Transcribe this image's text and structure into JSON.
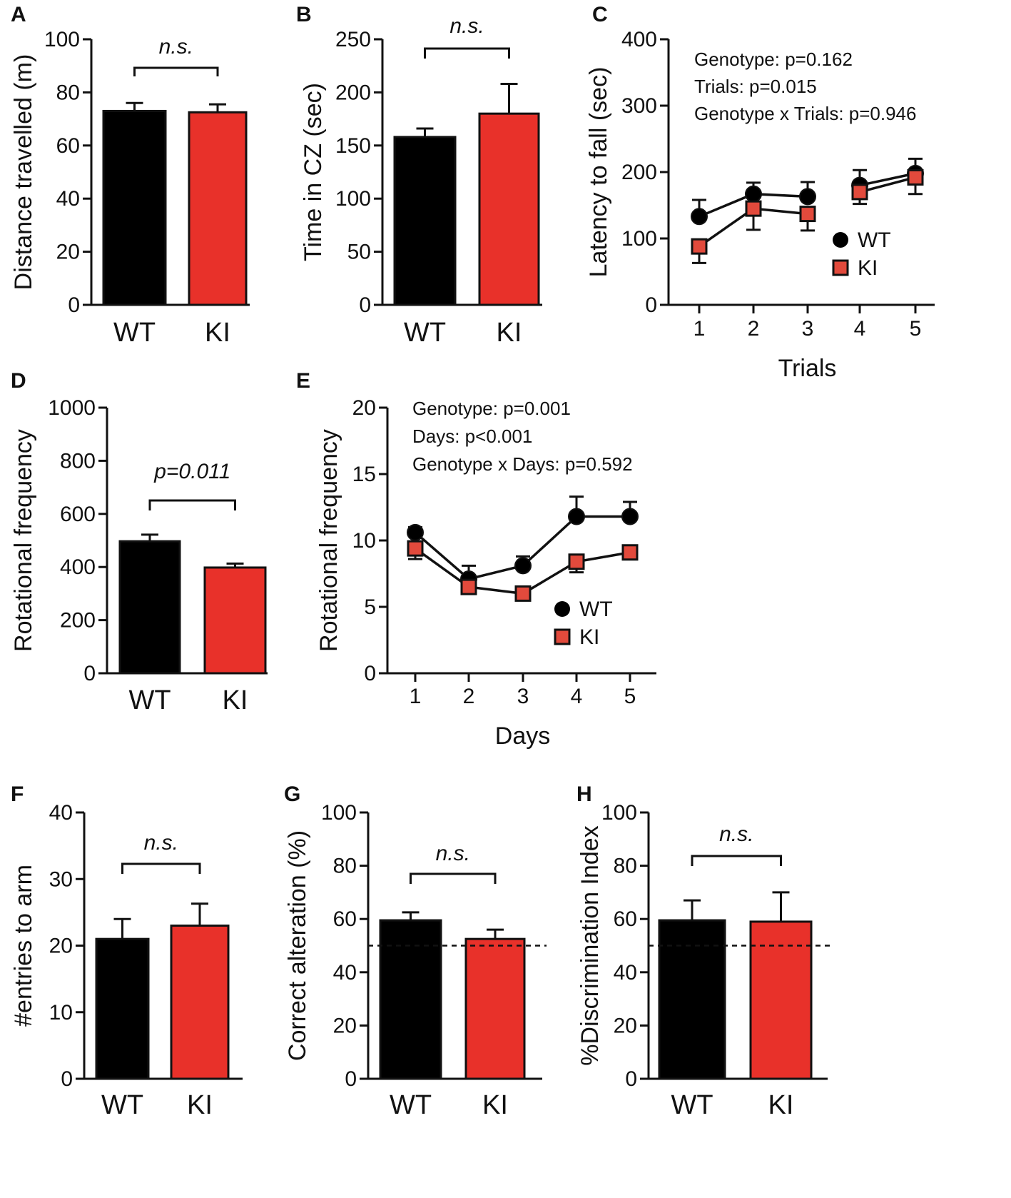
{
  "colors": {
    "wt": "#000000",
    "ki_bar": "#e8312a",
    "ki_marker": "#e24a3c",
    "outline": "#111111"
  },
  "chart_data": [
    {
      "panel": "A",
      "type": "bar",
      "categories": [
        "WT",
        "KI"
      ],
      "values": [
        73,
        72.5
      ],
      "errors": [
        3,
        3
      ],
      "ylabel": "Distance travelled (m)",
      "ylim": [
        0,
        100
      ],
      "yticks": [
        0,
        20,
        40,
        60,
        80,
        100
      ],
      "significance": "n.s."
    },
    {
      "panel": "B",
      "type": "bar",
      "categories": [
        "WT",
        "KI"
      ],
      "values": [
        158,
        180
      ],
      "errors": [
        8,
        28
      ],
      "ylabel": "Time in CZ (sec)",
      "ylim": [
        0,
        250
      ],
      "yticks": [
        0,
        50,
        100,
        150,
        200,
        250
      ],
      "significance": "n.s."
    },
    {
      "panel": "C",
      "type": "line",
      "x": [
        1,
        2,
        3,
        4,
        5
      ],
      "xlabel": "Trials",
      "ylabel": "Latency to fall (sec)",
      "ylim": [
        0,
        400
      ],
      "yticks": [
        0,
        100,
        200,
        300,
        400
      ],
      "segments": [
        [
          0,
          2
        ],
        [
          3,
          4
        ]
      ],
      "series": [
        {
          "name": "WT",
          "values": [
            133,
            167,
            163,
            180,
            198
          ],
          "errors": [
            25,
            17,
            22,
            23,
            22
          ]
        },
        {
          "name": "KI",
          "values": [
            88,
            145,
            137,
            170,
            192
          ],
          "errors": [
            25,
            32,
            25,
            18,
            25
          ]
        }
      ],
      "annotations": [
        "Genotype: p=0.162",
        "Trials: p=0.015",
        "Genotype x Trials: p=0.946"
      ],
      "legend": [
        "WT",
        "KI"
      ]
    },
    {
      "panel": "D",
      "type": "bar",
      "categories": [
        "WT",
        "KI"
      ],
      "values": [
        497,
        398
      ],
      "errors": [
        25,
        15
      ],
      "ylabel": "Rotational frequency",
      "ylim": [
        0,
        1000
      ],
      "yticks": [
        0,
        200,
        400,
        600,
        800,
        1000
      ],
      "significance": "p=0.011"
    },
    {
      "panel": "E",
      "type": "line",
      "x": [
        1,
        2,
        3,
        4,
        5
      ],
      "xlabel": "Days",
      "ylabel": "Rotational frequency",
      "ylim": [
        0,
        20
      ],
      "yticks": [
        0,
        5,
        10,
        15,
        20
      ],
      "segments": [
        [
          0,
          4
        ]
      ],
      "series": [
        {
          "name": "WT",
          "values": [
            10.6,
            7.1,
            8.1,
            11.8,
            11.8
          ],
          "errors": [
            0.4,
            1.0,
            0.7,
            1.5,
            1.1
          ]
        },
        {
          "name": "KI",
          "values": [
            9.4,
            6.5,
            6.0,
            8.4,
            9.1
          ],
          "errors": [
            0.8,
            0.3,
            0.3,
            0.8,
            0.4
          ]
        }
      ],
      "annotations": [
        "Genotype: p=0.001",
        "Days: p<0.001",
        "Genotype x Days: p=0.592"
      ],
      "legend": [
        "WT",
        "KI"
      ]
    },
    {
      "panel": "F",
      "type": "bar",
      "categories": [
        "WT",
        "KI"
      ],
      "values": [
        21,
        23
      ],
      "errors": [
        3,
        3.3
      ],
      "ylabel": "#entries to arm",
      "ylim": [
        0,
        40
      ],
      "yticks": [
        0,
        10,
        20,
        30,
        40
      ],
      "significance": "n.s."
    },
    {
      "panel": "G",
      "type": "bar",
      "categories": [
        "WT",
        "KI"
      ],
      "values": [
        59.5,
        52.5
      ],
      "errors": [
        3,
        3.5
      ],
      "ylabel": "Correct alteration (%)",
      "ylim": [
        0,
        100
      ],
      "yticks": [
        0,
        20,
        40,
        60,
        80,
        100
      ],
      "significance": "n.s.",
      "reference_line": 50
    },
    {
      "panel": "H",
      "type": "bar",
      "categories": [
        "WT",
        "KI"
      ],
      "values": [
        59.5,
        59
      ],
      "errors": [
        7.5,
        11
      ],
      "ylabel": "%Discrimination Index",
      "ylim": [
        0,
        100
      ],
      "yticks": [
        0,
        20,
        40,
        60,
        80,
        100
      ],
      "significance": "n.s.",
      "reference_line": 50
    }
  ]
}
